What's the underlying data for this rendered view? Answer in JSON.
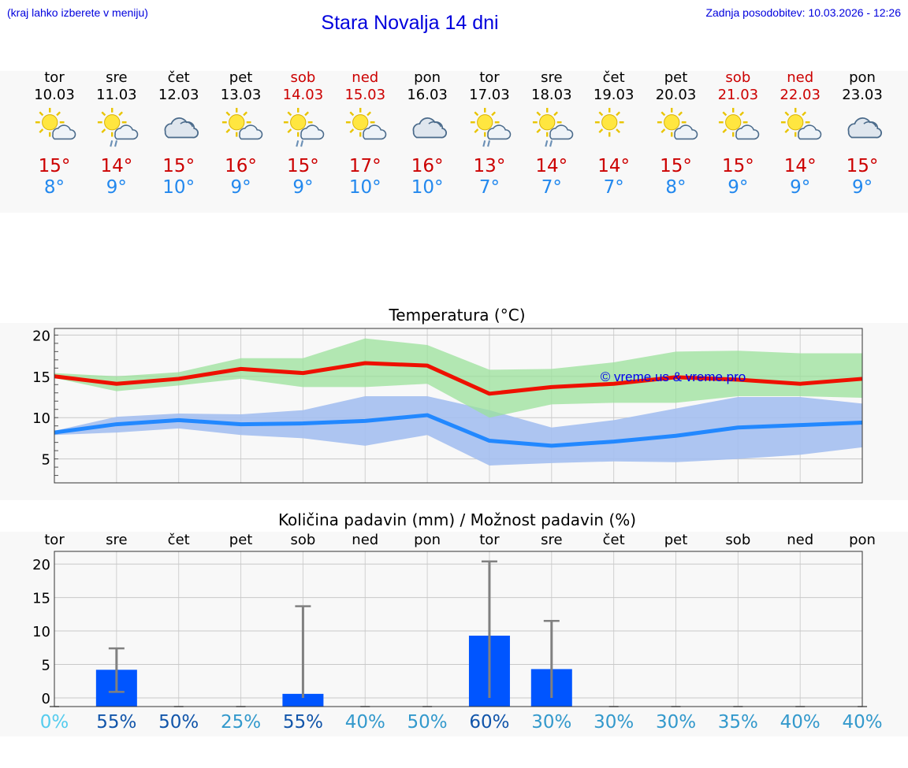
{
  "header": {
    "menu_hint": "(kraj lahko izberete v meniju)",
    "title": "Stara Novalja 14 dni",
    "updated": "Zadnja posodobitev: 10.03.2026 - 12:26"
  },
  "forecast": {
    "days": [
      {
        "name": "tor",
        "date": "10.03",
        "weekend": false,
        "icon": "sun-cloud-icon",
        "tmax": "15°",
        "tmin": "8°"
      },
      {
        "name": "sre",
        "date": "11.03",
        "weekend": false,
        "icon": "sun-cloud-rain-icon",
        "tmax": "14°",
        "tmin": "9°"
      },
      {
        "name": "čet",
        "date": "12.03",
        "weekend": false,
        "icon": "cloudy-icon",
        "tmax": "15°",
        "tmin": "10°"
      },
      {
        "name": "pet",
        "date": "13.03",
        "weekend": false,
        "icon": "sun-cloud-icon",
        "tmax": "16°",
        "tmin": "9°"
      },
      {
        "name": "sob",
        "date": "14.03",
        "weekend": true,
        "icon": "sun-cloud-rain-icon",
        "tmax": "15°",
        "tmin": "9°"
      },
      {
        "name": "ned",
        "date": "15.03",
        "weekend": true,
        "icon": "sun-cloud-icon",
        "tmax": "17°",
        "tmin": "10°"
      },
      {
        "name": "pon",
        "date": "16.03",
        "weekend": false,
        "icon": "cloudy-icon",
        "tmax": "16°",
        "tmin": "10°"
      },
      {
        "name": "tor",
        "date": "17.03",
        "weekend": false,
        "icon": "sun-cloud-rain-icon",
        "tmax": "13°",
        "tmin": "7°"
      },
      {
        "name": "sre",
        "date": "18.03",
        "weekend": false,
        "icon": "sun-cloud-rain-icon",
        "tmax": "14°",
        "tmin": "7°"
      },
      {
        "name": "čet",
        "date": "19.03",
        "weekend": false,
        "icon": "sun-icon",
        "tmax": "14°",
        "tmin": "7°"
      },
      {
        "name": "pet",
        "date": "20.03",
        "weekend": false,
        "icon": "sun-cloud-icon",
        "tmax": "15°",
        "tmin": "8°"
      },
      {
        "name": "sob",
        "date": "21.03",
        "weekend": true,
        "icon": "sun-cloud-icon",
        "tmax": "15°",
        "tmin": "9°"
      },
      {
        "name": "ned",
        "date": "22.03",
        "weekend": true,
        "icon": "sun-cloud-icon",
        "tmax": "14°",
        "tmin": "9°"
      },
      {
        "name": "pon",
        "date": "23.03",
        "weekend": false,
        "icon": "cloudy-icon",
        "tmax": "15°",
        "tmin": "9°"
      }
    ]
  },
  "colors": {
    "max_line": "#ee1100",
    "min_line": "#2288ff",
    "max_band": "#9be29b",
    "min_band": "#a4bff0",
    "overlap_band": "#6cc5a4",
    "precip_bar": "#0055ff",
    "whisker": "#808080"
  },
  "chart_data": [
    {
      "type": "line",
      "title": "Temperatura (°C)",
      "watermark": "© vreme.us & vreme.pro",
      "yticks": [
        "20",
        "15",
        "10",
        "5"
      ],
      "ylim": [
        2.1,
        20.8
      ],
      "x": [
        0,
        1,
        2,
        3,
        4,
        5,
        6,
        7,
        8,
        9,
        10,
        11,
        12,
        13
      ],
      "series": [
        {
          "name": "max",
          "values": [
            15.0,
            14.1,
            14.7,
            15.9,
            15.4,
            16.6,
            16.3,
            12.9,
            13.7,
            14.1,
            14.9,
            14.6,
            14.1,
            14.7
          ],
          "band_low": [
            14.8,
            13.2,
            13.9,
            14.7,
            13.7,
            13.7,
            14.1,
            10.0,
            11.6,
            11.8,
            11.8,
            12.6,
            12.6,
            12.4
          ],
          "band_high": [
            15.4,
            15.0,
            15.5,
            17.2,
            17.2,
            19.6,
            18.8,
            15.8,
            15.9,
            16.7,
            18.0,
            18.1,
            17.8,
            17.8
          ]
        },
        {
          "name": "min",
          "values": [
            8.2,
            9.2,
            9.7,
            9.2,
            9.3,
            9.6,
            10.3,
            7.2,
            6.6,
            7.1,
            7.8,
            8.8,
            9.1,
            9.4
          ],
          "band_low": [
            7.9,
            8.2,
            8.7,
            7.9,
            7.5,
            6.6,
            7.9,
            4.2,
            4.5,
            4.7,
            4.6,
            5.0,
            5.5,
            6.4
          ],
          "band_high": [
            8.4,
            10.1,
            10.5,
            10.4,
            10.9,
            12.6,
            12.6,
            10.9,
            8.8,
            9.7,
            11.1,
            12.5,
            12.5,
            11.7
          ]
        }
      ]
    },
    {
      "type": "bar",
      "title": "Količina padavin (mm) / Možnost padavin (%)",
      "categories": [
        "tor",
        "sre",
        "čet",
        "pet",
        "sob",
        "ned",
        "pon",
        "tor",
        "sre",
        "čet",
        "pet",
        "sob",
        "ned",
        "pon"
      ],
      "yticks": [
        "20",
        "15",
        "10",
        "5",
        "0"
      ],
      "ylim": [
        -1.3,
        21.9
      ],
      "values": [
        0,
        4.2,
        0,
        0,
        0.6,
        0,
        0,
        9.3,
        4.3,
        0,
        0,
        0,
        0,
        0
      ],
      "err_low": [
        0,
        0.9,
        0,
        0,
        0,
        0,
        0,
        0,
        0,
        0,
        0,
        0,
        0,
        0
      ],
      "err_high": [
        0,
        7.4,
        0,
        0,
        13.7,
        0,
        0,
        20.4,
        11.5,
        0,
        0,
        0,
        0,
        0
      ],
      "probability": [
        "0%",
        "55%",
        "50%",
        "25%",
        "55%",
        "40%",
        "50%",
        "60%",
        "30%",
        "30%",
        "30%",
        "35%",
        "40%",
        "40%"
      ],
      "probability_colors": [
        "#55ccee",
        "#1155aa",
        "#1155aa",
        "#3399cc",
        "#1155aa",
        "#3399cc",
        "#3399cc",
        "#1155aa",
        "#3399cc",
        "#3399cc",
        "#3399cc",
        "#3399cc",
        "#3399cc",
        "#3399cc"
      ]
    }
  ]
}
